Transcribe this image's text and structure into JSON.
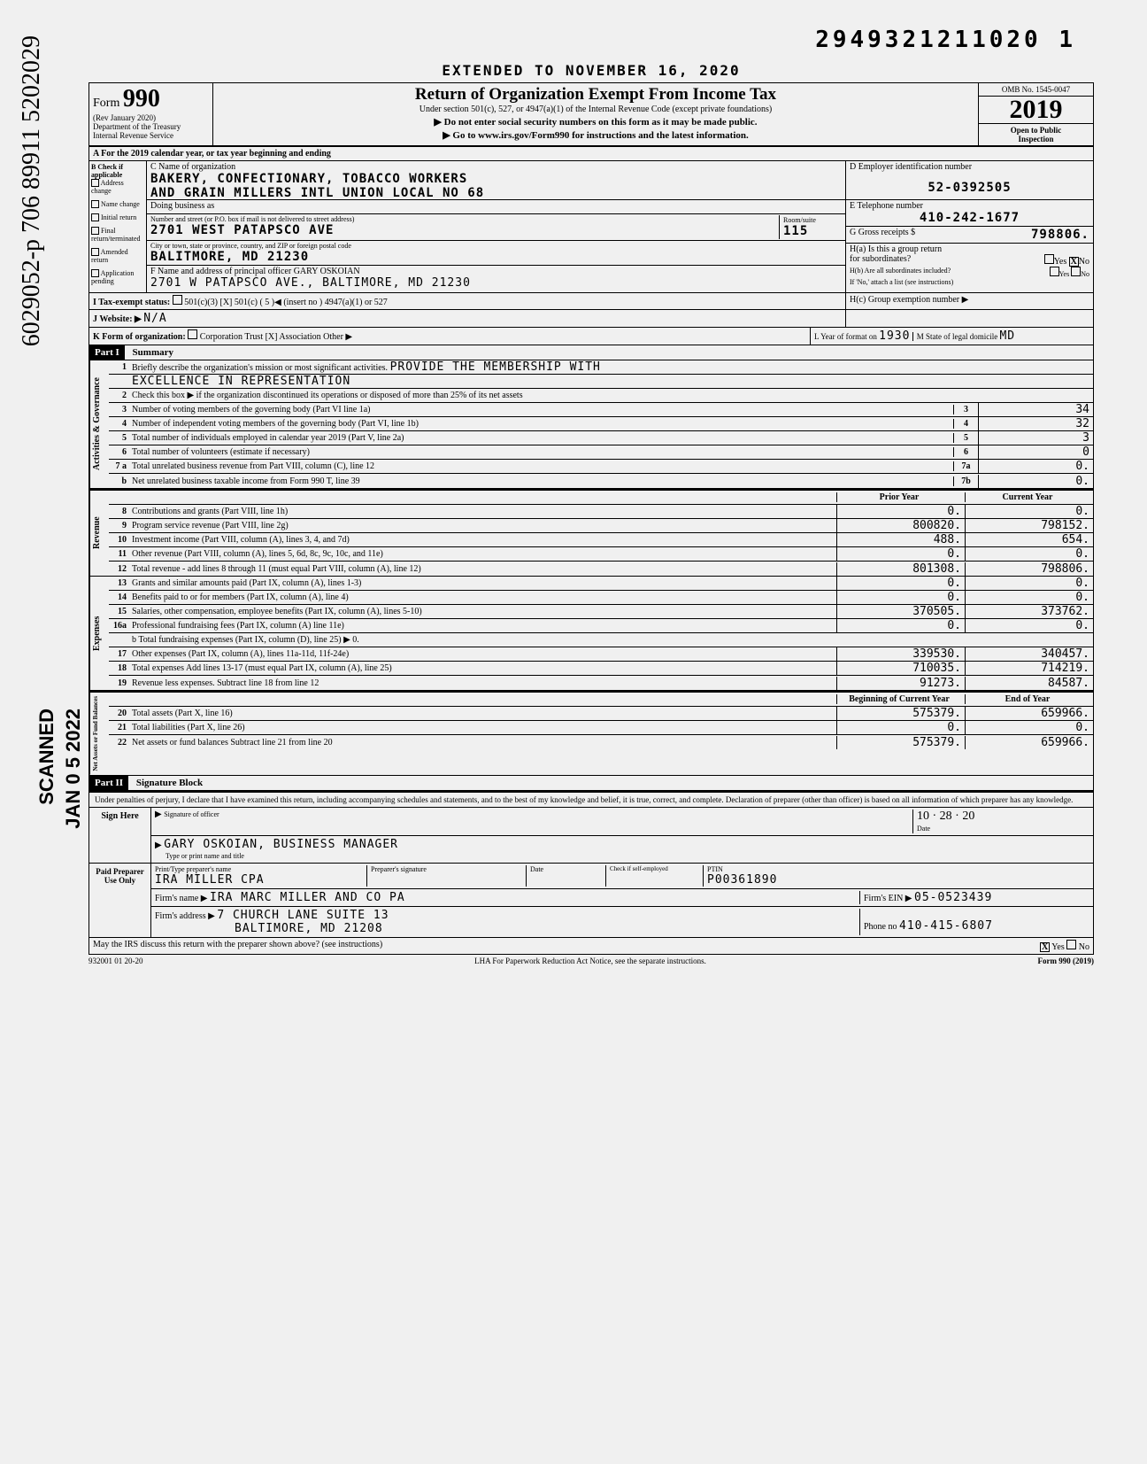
{
  "doc_number": "2949321211020 1",
  "vertical_cursive": "6029052-p 706 89911 5202029",
  "vertical_scanned": "SCANNED",
  "vertical_date": "JAN 0 5 2022",
  "extended": "EXTENDED TO NOVEMBER 16, 2020",
  "form": {
    "prefix": "Form",
    "num": "990",
    "rev": "(Rev January 2020)",
    "dept": "Department of the Treasury",
    "irs": "Internal Revenue Service",
    "title": "Return of Organization Exempt From Income Tax",
    "subtitle": "Under section 501(c), 527, or 4947(a)(1) of the Internal Revenue Code (except private foundations)",
    "arrow1": "▶ Do not enter social security numbers on this form as it may be made public.",
    "arrow2": "▶ Go to www.irs.gov/Form990 for instructions and the latest information.",
    "omb": "OMB No. 1545-0047",
    "year": "2019",
    "open": "Open to Public",
    "inspection": "Inspection"
  },
  "rowA": "A  For the 2019 calendar year, or tax year beginning                              and ending",
  "sectionB": {
    "label": "B  Check if applicable",
    "items": [
      "Address change",
      "Name change",
      "Initial return",
      "Final return/terminated",
      "Amended return",
      "Application pending"
    ]
  },
  "sectionC": {
    "label": "C Name of organization",
    "name1": "BAKERY, CONFECTIONARY, TOBACCO WORKERS",
    "name2": "AND GRAIN MILLERS INTL UNION LOCAL NO 68",
    "dba_label": "Doing business as",
    "street_label": "Number and street (or P.O. box if mail is not delivered to street address)",
    "room_label": "Room/suite",
    "street": "2701 WEST PATAPSCO AVE",
    "room": "115",
    "city_label": "City or town, state or province, country, and ZIP or foreign postal code",
    "city": "BALITMORE, MD  21230",
    "f_label": "F Name and address of principal officer GARY  OSKOIAN",
    "f_addr": "2701 W PATAPSCO AVE., BALTIMORE, MD  21230"
  },
  "sectionD": {
    "label": "D  Employer identification number",
    "ein": "52-0392505",
    "e_label": "E  Telephone number",
    "phone": "410-242-1677",
    "g_label": "G  Gross receipts $",
    "gross": "798806.",
    "ha_label": "H(a) Is this a group return",
    "ha_sub": "for subordinates?",
    "ha_yesno": "Yes  [X] No",
    "hb_label": "H(b) Are all subordinates included?",
    "hb_yesno": "Yes      No",
    "hb_note": "If 'No,' attach a list (see instructions)",
    "hc_label": "H(c) Group exemption number ▶"
  },
  "rowI": {
    "label": "I  Tax-exempt status:",
    "opts": "501(c)(3)   [X] 501(c) (  5  )◀ (insert no )    4947(a)(1) or    527"
  },
  "rowJ": {
    "label": "J  Website: ▶",
    "val": "N/A"
  },
  "rowK": {
    "label": "K  Form of organization:",
    "opts": "Corporation      Trust   [X] Association      Other ▶",
    "l_label": "L Year of format on",
    "l_year": "1930",
    "m_label": "M State of legal domicile",
    "m_state": "MD"
  },
  "part1": {
    "header": "Part I",
    "title": "Summary",
    "line1a": "Briefly describe the organization's mission or most significant activities.",
    "line1b": "PROVIDE THE MEMBERSHIP WITH",
    "line1c": "EXCELLENCE IN REPRESENTATION",
    "line2": "Check this box ▶       if the organization discontinued its operations or disposed of more than 25% of its net assets",
    "line3": "Number of voting members of the governing body (Part VI  line 1a)",
    "line3_box": "3",
    "line3_val": "34",
    "line4": "Number of independent voting members of the governing body (Part VI, line 1b)",
    "line4_box": "4",
    "line4_val": "32",
    "line5": "Total number of individuals employed in calendar year 2019 (Part V, line 2a)",
    "line5_box": "5",
    "line5_val": "3",
    "line6": "Total number of volunteers (estimate if necessary)",
    "line6_box": "6",
    "line6_val": "0",
    "line7a": "Total unrelated business revenue from Part VIII, column (C), line 12",
    "line7a_box": "7a",
    "line7a_val": "0.",
    "line7b": "Net unrelated business taxable income from Form 990 T, line 39",
    "line7b_box": "7b",
    "line7b_val": "0.",
    "prior_year": "Prior Year",
    "current_year": "Current Year",
    "rev": [
      {
        "n": "8",
        "d": "Contributions and grants (Part VIII, line 1h)",
        "p": "0.",
        "c": "0."
      },
      {
        "n": "9",
        "d": "Program service revenue (Part VIII, line 2g)",
        "p": "800820.",
        "c": "798152."
      },
      {
        "n": "10",
        "d": "Investment income (Part VIII, column (A), lines 3, 4, and 7d)",
        "p": "488.",
        "c": "654."
      },
      {
        "n": "11",
        "d": "Other revenue (Part VIII, column (A), lines 5, 6d, 8c, 9c, 10c, and 11e)",
        "p": "0.",
        "c": "0."
      },
      {
        "n": "12",
        "d": "Total revenue - add lines 8 through 11 (must equal Part VIII, column (A), line 12)",
        "p": "801308.",
        "c": "798806."
      }
    ],
    "exp": [
      {
        "n": "13",
        "d": "Grants and similar amounts paid (Part IX, column (A), lines 1-3)",
        "p": "0.",
        "c": "0."
      },
      {
        "n": "14",
        "d": "Benefits paid to or for members (Part IX, column (A), line 4)",
        "p": "0.",
        "c": "0."
      },
      {
        "n": "15",
        "d": "Salaries, other compensation, employee benefits (Part IX, column (A), lines 5-10)",
        "p": "370505.",
        "c": "373762."
      },
      {
        "n": "16a",
        "d": "Professional fundraising fees (Part IX, column (A)  line 11e)",
        "p": "0.",
        "c": "0."
      },
      {
        "n": "",
        "d": "b Total fundraising expenses (Part IX, column (D), line 25)   ▶                  0.",
        "p": "",
        "c": ""
      },
      {
        "n": "17",
        "d": "Other expenses (Part IX, column (A), lines 11a-11d, 11f-24e)",
        "p": "339530.",
        "c": "340457."
      },
      {
        "n": "18",
        "d": "Total expenses  Add lines 13-17 (must equal Part IX, column (A), line 25)",
        "p": "710035.",
        "c": "714219."
      },
      {
        "n": "19",
        "d": "Revenue less expenses. Subtract line 18 from line 12",
        "p": "91273.",
        "c": "84587."
      }
    ],
    "bal_h1": "Beginning of Current Year",
    "bal_h2": "End of Year",
    "bal": [
      {
        "n": "20",
        "d": "Total assets (Part X, line 16)",
        "p": "575379.",
        "c": "659966."
      },
      {
        "n": "21",
        "d": "Total liabilities (Part X, line 26)",
        "p": "0.",
        "c": "0."
      },
      {
        "n": "22",
        "d": "Net assets or fund balances  Subtract line 21 from line 20",
        "p": "575379.",
        "c": "659966."
      }
    ]
  },
  "part2": {
    "header": "Part II",
    "title": "Signature Block",
    "perjury": "Under penalties of perjury, I declare that I have examined this return, including accompanying schedules and statements, and to the best of my knowledge and belief, it is true, correct, and complete. Declaration of preparer (other than officer) is based on all information of which preparer has any knowledge.",
    "sign_here": "Sign Here",
    "sig_label": "Signature of officer",
    "sig_date": "10 · 28 · 20",
    "date_label": "Date",
    "officer_name": "GARY OSKOIAN,  BUSINESS MANAGER",
    "officer_sub": "Type or print name and title",
    "paid_label": "Paid Preparer Use Only",
    "prep_name_label": "Print/Type preparer's name",
    "prep_name": "IRA MILLER CPA",
    "prep_sig_label": "Preparer's signature",
    "prep_date_label": "Date",
    "prep_check": "Check      if self-employed",
    "ptin_label": "PTIN",
    "ptin": "P00361890",
    "firm_name_label": "Firm's name  ▶",
    "firm_name": "IRA MARC MILLER AND CO PA",
    "firm_ein_label": "Firm's EIN ▶",
    "firm_ein": "05-0523439",
    "firm_addr_label": "Firm's address ▶",
    "firm_addr1": "7 CHURCH LANE SUITE 13",
    "firm_addr2": "BALTIMORE, MD 21208",
    "firm_phone_label": "Phone no",
    "firm_phone": "410-415-6807",
    "discuss": "May the IRS discuss this return with the preparer shown above? (see instructions)",
    "discuss_yn": "[X] Yes      No"
  },
  "footer": {
    "left": "932001  01 20-20",
    "mid": "LHA  For Paperwork Reduction Act Notice, see the separate instructions.",
    "right": "Form 990 (2019)"
  },
  "side_labels": {
    "gov": "Activities & Governance",
    "rev": "Revenue",
    "exp": "Expenses",
    "bal": "Net Assets or Fund Balances"
  }
}
